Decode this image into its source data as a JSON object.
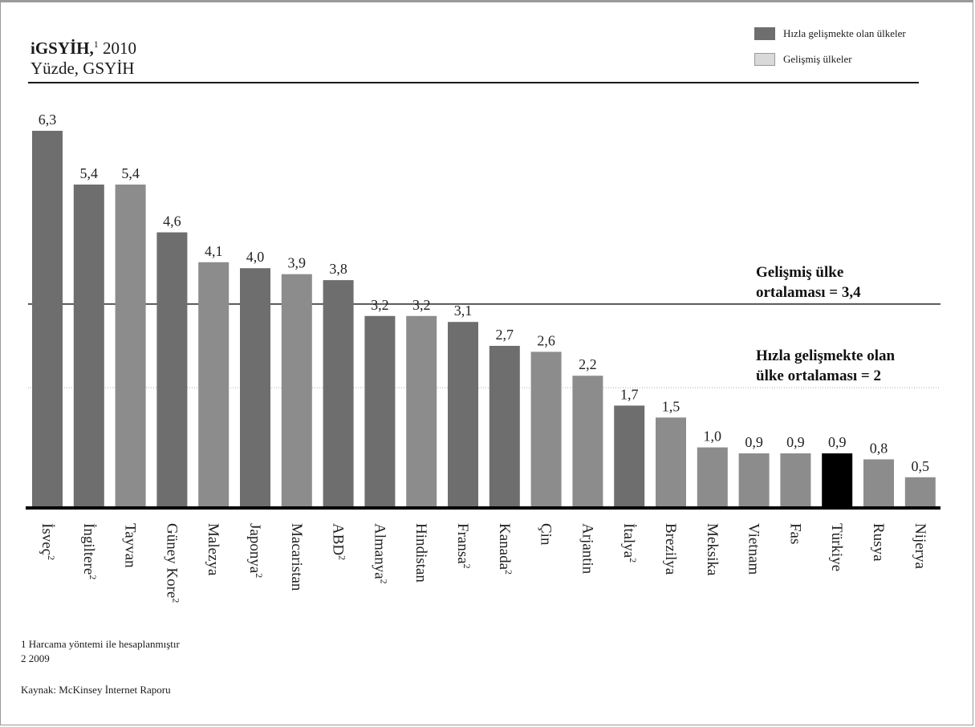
{
  "header": {
    "title_bold": "iGSYİH,",
    "title_sup": "1",
    "title_rest": " 2010",
    "subtitle": "Yüzde,  GSYİH"
  },
  "legend": [
    {
      "label": "Hızla gelişmekte olan ülkeler",
      "color": "#6e6e6e"
    },
    {
      "label": "Gelişmiş ülkeler",
      "color": "#d9d9d9"
    }
  ],
  "reference_lines": [
    {
      "label_line1": "Gelişmiş ülke",
      "label_line2": "ortalaması = 3,4",
      "value": 3.4,
      "style": "solid"
    },
    {
      "label_line1": "Hızla gelişmekte olan",
      "label_line2": "ülke ortalaması = 2",
      "value": 2,
      "style": "dotted"
    }
  ],
  "footnotes": {
    "note1": "1  Harcama yöntemi ile hesaplanmıştır",
    "note2": "2  2009",
    "source": "Kaynak: McKinsey İnternet Raporu"
  },
  "chart_data": {
    "type": "bar",
    "categories": [
      "İsveç",
      "İngiltere",
      "Tayvan",
      "Güney Kore",
      "Malezya",
      "Japonya",
      "Macaristan",
      "ABD",
      "Almanya",
      "Hindistan",
      "Fransa",
      "Kanada",
      "Çin",
      "Arjantin",
      "İtalya",
      "Brezilya",
      "Meksika",
      "Vietnam",
      "Fas",
      "Türkiye",
      "Rusya",
      "Nijerya"
    ],
    "footnote_marks": [
      "2",
      "2",
      "",
      "2",
      "",
      "2",
      "",
      "2",
      "2",
      "",
      "2",
      "2",
      "",
      "",
      "2",
      "",
      "",
      "",
      "",
      "",
      "",
      ""
    ],
    "values": [
      6.3,
      5.4,
      5.4,
      4.6,
      4.1,
      4.0,
      3.9,
      3.8,
      3.2,
      3.2,
      3.1,
      2.7,
      2.6,
      2.2,
      1.7,
      1.5,
      1.0,
      0.9,
      0.9,
      0.9,
      0.8,
      0.5
    ],
    "value_labels": [
      "6,3",
      "5,4",
      "5,4",
      "4,6",
      "4,1",
      "4,0",
      "3,9",
      "3,8",
      "3,2",
      "3,2",
      "3,1",
      "2,7",
      "2,6",
      "2,2",
      "1,7",
      "1,5",
      "1,0",
      "0,9",
      "0,9",
      "0,9",
      "0,8",
      "0,5"
    ],
    "colors": [
      "#6e6e6e",
      "#6e6e6e",
      "#8c8c8c",
      "#6e6e6e",
      "#8c8c8c",
      "#6e6e6e",
      "#8c8c8c",
      "#6e6e6e",
      "#6e6e6e",
      "#8c8c8c",
      "#6e6e6e",
      "#6e6e6e",
      "#8c8c8c",
      "#8c8c8c",
      "#6e6e6e",
      "#8c8c8c",
      "#8c8c8c",
      "#8c8c8c",
      "#8c8c8c",
      "#000000",
      "#8c8c8c",
      "#8c8c8c"
    ],
    "ylim": [
      0,
      6.3
    ],
    "grid": false
  }
}
